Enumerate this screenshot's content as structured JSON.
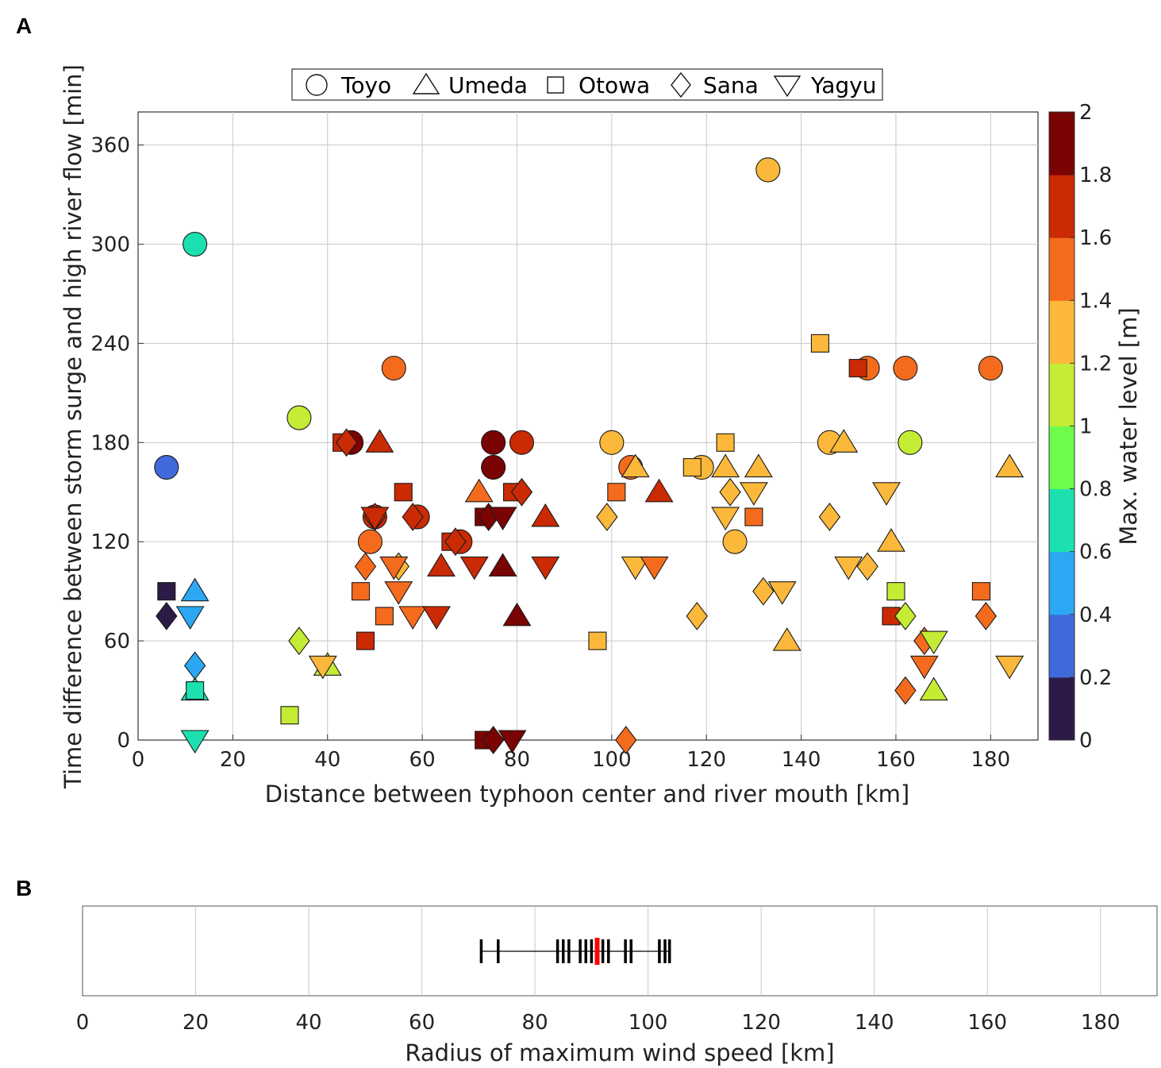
{
  "chart_data": [
    {
      "panel": "A",
      "type": "scatter",
      "title": "",
      "xlabel": "Distance between typhoon center and river mouth [km]",
      "ylabel": "Time difference between storm surge and high river flow [min]",
      "xlim": [
        0,
        190
      ],
      "ylim": [
        0,
        380
      ],
      "xticks": [
        0,
        20,
        40,
        60,
        80,
        100,
        120,
        140,
        160,
        180
      ],
      "yticks": [
        0,
        60,
        120,
        180,
        240,
        300,
        360
      ],
      "grid": true,
      "legend_position": "top",
      "legend": [
        {
          "name": "Toyo",
          "marker": "circle"
        },
        {
          "name": "Umeda",
          "marker": "triangle-up"
        },
        {
          "name": "Otowa",
          "marker": "square"
        },
        {
          "name": "Sana",
          "marker": "diamond"
        },
        {
          "name": "Yagyu",
          "marker": "triangle-down"
        }
      ],
      "colorbar": {
        "label": "Max. water level [m]",
        "range": [
          0,
          2
        ],
        "ticks": [
          "0",
          "0.2",
          "0.4",
          "0.6",
          "0.8",
          "1",
          "1.2",
          "1.4",
          "1.6",
          "1.8",
          "2"
        ],
        "colors": [
          "#2e1a47",
          "#4169d9",
          "#2ba7f4",
          "#1ce0b0",
          "#6dfc4c",
          "#c4ec34",
          "#fbb83a",
          "#f56b1d",
          "#ca2a04",
          "#7a0403"
        ]
      },
      "series": [
        {
          "name": "Toyo",
          "marker": "circle",
          "points": [
            [
              133,
              345,
              1.3
            ],
            [
              12,
              300,
              0.7
            ],
            [
              54,
              225,
              1.5
            ],
            [
              154,
              225,
              1.5
            ],
            [
              162,
              225,
              1.5
            ],
            [
              180,
              225,
              1.5
            ],
            [
              34,
              195,
              1.1
            ],
            [
              6,
              165,
              0.3
            ],
            [
              45,
              180,
              1.9
            ],
            [
              75,
              180,
              1.9
            ],
            [
              81,
              180,
              1.7
            ],
            [
              100,
              180,
              1.3
            ],
            [
              146,
              180,
              1.3
            ],
            [
              163,
              180,
              1.1
            ],
            [
              75,
              165,
              1.9
            ],
            [
              104,
              165,
              1.5
            ],
            [
              119,
              165,
              1.3
            ],
            [
              50,
              135,
              1.7
            ],
            [
              59,
              135,
              1.7
            ],
            [
              49,
              120,
              1.5
            ],
            [
              68,
              120,
              1.7
            ],
            [
              126,
              120,
              1.3
            ]
          ]
        },
        {
          "name": "Umeda",
          "marker": "triangle-up",
          "points": [
            [
              51,
              180,
              1.7
            ],
            [
              149,
              180,
              1.3
            ],
            [
              105,
              165,
              1.3
            ],
            [
              124,
              165,
              1.3
            ],
            [
              131,
              165,
              1.3
            ],
            [
              184,
              165,
              1.3
            ],
            [
              72,
              150,
              1.5
            ],
            [
              110,
              150,
              1.7
            ],
            [
              86,
              135,
              1.7
            ],
            [
              159,
              120,
              1.3
            ],
            [
              64,
              105,
              1.7
            ],
            [
              77,
              105,
              1.9
            ],
            [
              12,
              90,
              0.5
            ],
            [
              80,
              75,
              1.9
            ],
            [
              137,
              60,
              1.3
            ],
            [
              40,
              45,
              1.1
            ],
            [
              12,
              30,
              0.7
            ],
            [
              168,
              30,
              1.1
            ]
          ]
        },
        {
          "name": "Otowa",
          "marker": "square",
          "points": [
            [
              144,
              240,
              1.3
            ],
            [
              152,
              225,
              1.7
            ],
            [
              43,
              180,
              1.7
            ],
            [
              124,
              180,
              1.3
            ],
            [
              117,
              165,
              1.3
            ],
            [
              56,
              150,
              1.7
            ],
            [
              101,
              150,
              1.5
            ],
            [
              79,
              150,
              1.7
            ],
            [
              130,
              135,
              1.5
            ],
            [
              73,
              135,
              1.9
            ],
            [
              66,
              120,
              1.7
            ],
            [
              6,
              90,
              0.1
            ],
            [
              47,
              90,
              1.5
            ],
            [
              160,
              90,
              1.1
            ],
            [
              178,
              90,
              1.5
            ],
            [
              52,
              75,
              1.5
            ],
            [
              159,
              75,
              1.7
            ],
            [
              48,
              60,
              1.7
            ],
            [
              97,
              60,
              1.3
            ],
            [
              12,
              30,
              0.7
            ],
            [
              32,
              15,
              1.1
            ],
            [
              73,
              0,
              1.9
            ]
          ]
        },
        {
          "name": "Sana",
          "marker": "diamond",
          "points": [
            [
              44,
              180,
              1.7
            ],
            [
              81,
              150,
              1.7
            ],
            [
              125,
              150,
              1.3
            ],
            [
              50,
              135,
              1.7
            ],
            [
              58,
              135,
              1.7
            ],
            [
              99,
              135,
              1.3
            ],
            [
              146,
              135,
              1.3
            ],
            [
              74,
              135,
              1.9
            ],
            [
              67,
              120,
              1.7
            ],
            [
              48,
              105,
              1.5
            ],
            [
              55,
              105,
              1.3
            ],
            [
              154,
              105,
              1.3
            ],
            [
              132,
              90,
              1.3
            ],
            [
              6,
              75,
              0.1
            ],
            [
              118,
              75,
              1.3
            ],
            [
              162,
              75,
              1.1
            ],
            [
              179,
              75,
              1.5
            ],
            [
              34,
              60,
              1.1
            ],
            [
              166,
              60,
              1.5
            ],
            [
              12,
              45,
              0.5
            ],
            [
              162,
              30,
              1.5
            ],
            [
              75,
              0,
              1.9
            ],
            [
              103,
              0,
              1.5
            ]
          ]
        },
        {
          "name": "Yagyu",
          "marker": "triangle-down",
          "points": [
            [
              50,
              135,
              1.7
            ],
            [
              77,
              135,
              1.9
            ],
            [
              124,
              135,
              1.3
            ],
            [
              130,
              150,
              1.3
            ],
            [
              158,
              150,
              1.3
            ],
            [
              54,
              105,
              1.5
            ],
            [
              71,
              105,
              1.7
            ],
            [
              86,
              105,
              1.7
            ],
            [
              105,
              105,
              1.3
            ],
            [
              109,
              105,
              1.5
            ],
            [
              150,
              105,
              1.3
            ],
            [
              55,
              90,
              1.5
            ],
            [
              136,
              90,
              1.3
            ],
            [
              11,
              75,
              0.5
            ],
            [
              58,
              75,
              1.5
            ],
            [
              63,
              75,
              1.7
            ],
            [
              39,
              45,
              1.3
            ],
            [
              166,
              45,
              1.5
            ],
            [
              168,
              60,
              1.1
            ],
            [
              184,
              45,
              1.3
            ],
            [
              12,
              0,
              0.7
            ],
            [
              79,
              0,
              1.9
            ]
          ]
        }
      ]
    },
    {
      "panel": "B",
      "type": "strip",
      "title": "",
      "xlabel": "Radius of maximum wind speed [km]",
      "ylabel": "",
      "xlim": [
        0,
        190
      ],
      "xticks": [
        0,
        20,
        40,
        60,
        80,
        100,
        120,
        140,
        160,
        180
      ],
      "grid": true,
      "range_line": [
        70.5,
        103.8
      ],
      "values": [
        70.5,
        73.5,
        84,
        85,
        86,
        88,
        89,
        90,
        92,
        93,
        96,
        97,
        102,
        103,
        103.8
      ],
      "mean": 91,
      "mean_color": "#ff0000"
    }
  ]
}
